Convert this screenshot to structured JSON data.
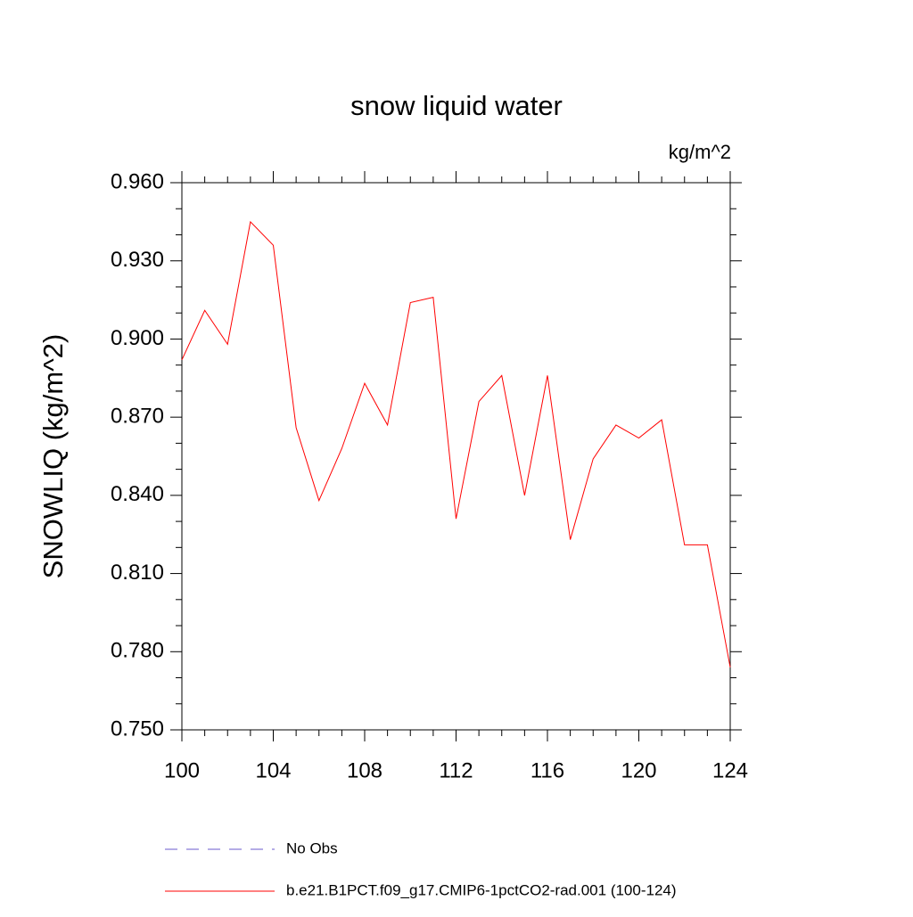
{
  "chart_data": {
    "type": "line",
    "title": "snow liquid water",
    "units": "kg/m^2",
    "ylabel": "SNOWLIQ  (kg/m^2)",
    "x": [
      100,
      101,
      102,
      103,
      104,
      105,
      106,
      107,
      108,
      109,
      110,
      111,
      112,
      113,
      114,
      115,
      116,
      117,
      118,
      119,
      120,
      121,
      122,
      123,
      124
    ],
    "series": [
      {
        "name": "b.e21.B1PCT.f09_g17.CMIP6-1pctCO2-rad.001 (100-124)",
        "color": "#ff0000",
        "values": [
          0.892,
          0.911,
          0.898,
          0.945,
          0.936,
          0.866,
          0.838,
          0.858,
          0.883,
          0.867,
          0.914,
          0.916,
          0.831,
          0.876,
          0.886,
          0.84,
          0.886,
          0.823,
          0.854,
          0.867,
          0.862,
          0.869,
          0.821,
          0.821,
          0.774
        ]
      }
    ],
    "no_obs": {
      "name": "No Obs",
      "color": "#6a5acd",
      "dash": "dashed"
    },
    "xlim": [
      100,
      124
    ],
    "xticks": [
      100,
      104,
      108,
      112,
      116,
      120,
      124
    ],
    "xminorticks": [
      101,
      102,
      103,
      105,
      106,
      107,
      109,
      110,
      111,
      113,
      114,
      115,
      117,
      118,
      119,
      121,
      122,
      123
    ],
    "ylim": [
      0.75,
      0.96
    ],
    "yticks": [
      {
        "value": 0.75,
        "label": "0.750"
      },
      {
        "value": 0.78,
        "label": "0.780"
      },
      {
        "value": 0.81,
        "label": "0.810"
      },
      {
        "value": 0.84,
        "label": "0.840"
      },
      {
        "value": 0.87,
        "label": "0.870"
      },
      {
        "value": 0.9,
        "label": "0.900"
      },
      {
        "value": 0.93,
        "label": "0.930"
      },
      {
        "value": 0.96,
        "label": "0.960"
      }
    ],
    "yminorticks": [
      0.76,
      0.77,
      0.79,
      0.8,
      0.82,
      0.83,
      0.85,
      0.86,
      0.88,
      0.89,
      0.91,
      0.92,
      0.94,
      0.95
    ],
    "grid": false
  }
}
